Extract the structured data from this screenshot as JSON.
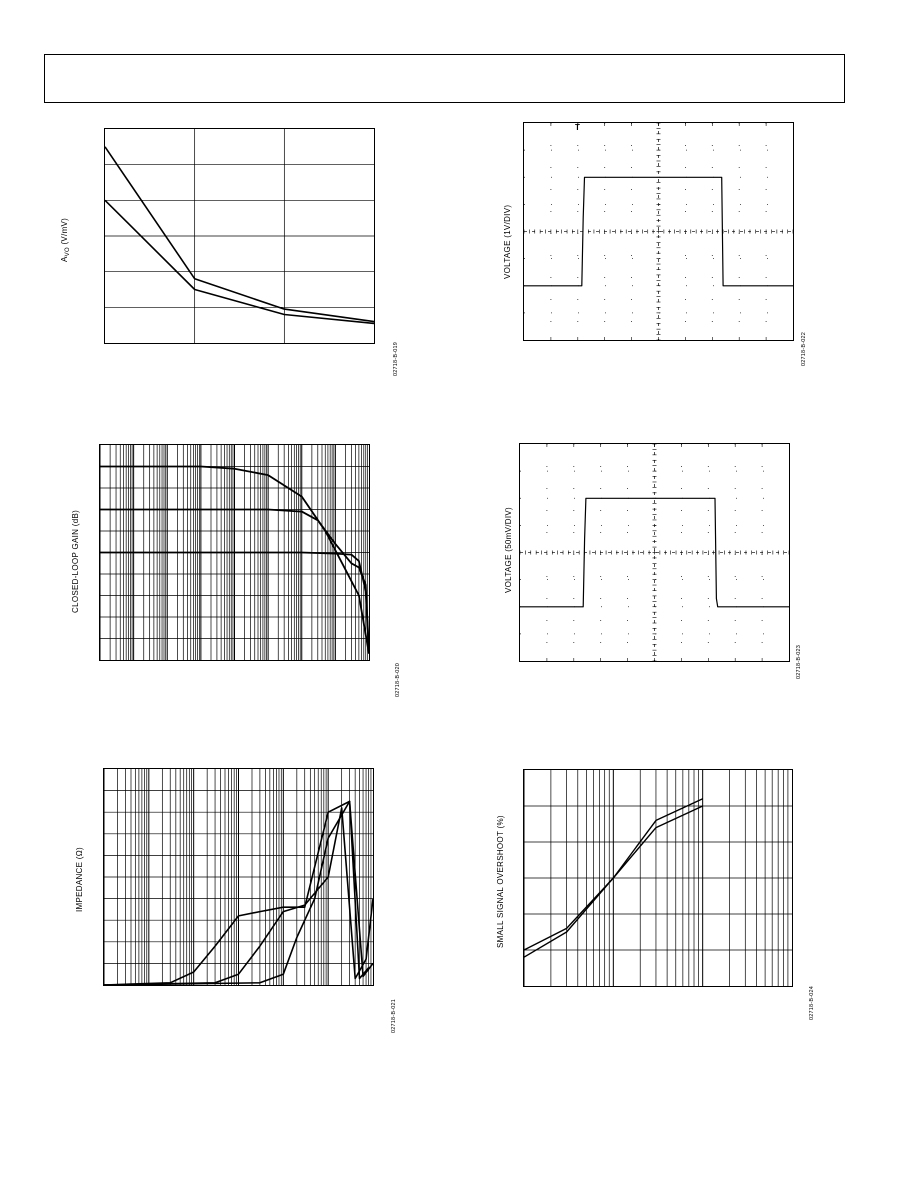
{
  "page": {
    "header_box": ""
  },
  "charts": {
    "avo": {
      "ylabel_main": "A",
      "ylabel_sub": "VO",
      "ylabel_unit": " (V/mV)",
      "fig_id": "02718-B-019"
    },
    "pulse_large": {
      "ylabel": "VOLTAGE (1V/DIV)",
      "fig_id": "02718-B-022",
      "trigger_marker": "T"
    },
    "clgain": {
      "ylabel": "CLOSED-LOOP GAIN (dB)",
      "fig_id": "02718-B-020"
    },
    "pulse_small": {
      "ylabel": "VOLTAGE (50mV/DIV)",
      "fig_id": "02718-B-023"
    },
    "impedance": {
      "ylabel": "IMPEDANCE (Ω)",
      "fig_id": "02718-B-021"
    },
    "overshoot": {
      "ylabel": "SMALL SIGNAL OVERSHOOT (%)",
      "fig_id": "02718-B-024"
    }
  },
  "chart_data": [
    {
      "id": "avo",
      "type": "line",
      "title": "",
      "xlabel": "",
      "ylabel": "AVO (V/mV)",
      "xlim": [
        0,
        3
      ],
      "ylim": [
        0,
        6
      ],
      "grid": true,
      "series": [
        {
          "name": "",
          "x": [
            0,
            1,
            2,
            3
          ],
          "y": [
            5.5,
            1.8,
            0.95,
            0.6
          ]
        },
        {
          "name": "",
          "x": [
            0,
            1,
            2,
            3
          ],
          "y": [
            4.0,
            1.5,
            0.8,
            0.55
          ]
        }
      ]
    },
    {
      "id": "pulse_large",
      "type": "line",
      "title": "",
      "xlabel": "",
      "ylabel": "VOLTAGE (1V/DIV)",
      "xlim": [
        0,
        10
      ],
      "ylim": [
        0,
        8
      ],
      "grid": true,
      "series": [
        {
          "name": "",
          "x": [
            0,
            2.15,
            2.2,
            2.25,
            7.35,
            7.4,
            10
          ],
          "y": [
            2,
            2,
            4.5,
            6,
            6,
            2,
            2
          ]
        }
      ]
    },
    {
      "id": "clgain",
      "type": "line",
      "title": "",
      "xlabel": "",
      "ylabel": "CLOSED-LOOP GAIN (dB)",
      "x_scale": "log",
      "xlim": [
        1,
        100000000
      ],
      "ylim": [
        0,
        10
      ],
      "grid": true,
      "series": [
        {
          "name": "",
          "x": [
            1,
            20,
            100,
            300,
            1000,
            10000,
            100000,
            1000000,
            5000000,
            20000000,
            50000000,
            100000000
          ],
          "y": [
            9,
            9,
            9,
            9,
            9,
            8.9,
            8.6,
            7.6,
            6.0,
            4.2,
            3.0,
            0.3
          ]
        },
        {
          "name": "",
          "x": [
            1,
            100,
            1000,
            10000,
            100000,
            1000000,
            3000000,
            10000000,
            30000000,
            50000000,
            80000000,
            100000000
          ],
          "y": [
            7,
            7,
            7,
            7,
            7,
            6.9,
            6.5,
            5.4,
            4.5,
            4.3,
            3.5,
            0.3
          ]
        },
        {
          "name": "",
          "x": [
            1,
            100,
            1000,
            10000,
            100000,
            1000000,
            10000000,
            30000000,
            50000000,
            80000000,
            100000000
          ],
          "y": [
            5,
            5,
            5,
            5,
            5,
            5,
            4.95,
            4.9,
            4.6,
            3.2,
            0.3
          ]
        }
      ]
    },
    {
      "id": "pulse_small",
      "type": "line",
      "title": "",
      "xlabel": "",
      "ylabel": "VOLTAGE (50mV/DIV)",
      "xlim": [
        0,
        10
      ],
      "ylim": [
        0,
        8
      ],
      "grid": true,
      "series": [
        {
          "name": "",
          "x": [
            0,
            2.35,
            2.4,
            2.45,
            7.25,
            7.3,
            7.35,
            10
          ],
          "y": [
            2,
            2,
            4.5,
            6,
            6,
            2.3,
            2,
            2
          ]
        }
      ]
    },
    {
      "id": "impedance",
      "type": "line",
      "title": "",
      "xlabel": "",
      "ylabel": "IMPEDANCE (Ω)",
      "x_scale": "log",
      "xlim": [
        100,
        100000000
      ],
      "ylim": [
        0,
        10
      ],
      "grid": true,
      "series": [
        {
          "name": "",
          "x": [
            100,
            3000,
            10000,
            30000,
            100000,
            300000,
            1000000,
            3000000,
            10000000,
            30000000,
            50000000,
            80000000
          ],
          "y": [
            0,
            0.1,
            0.6,
            1.8,
            3.2,
            3.4,
            3.6,
            3.6,
            8.0,
            8.5,
            0.3,
            0.8
          ]
        },
        {
          "name": "",
          "x": [
            100,
            30000,
            100000,
            300000,
            1000000,
            3000000,
            10000000,
            20000000,
            40000000,
            70000000,
            100000000
          ],
          "y": [
            0,
            0.1,
            0.5,
            1.8,
            3.4,
            3.7,
            5.0,
            8.2,
            0.3,
            1.2,
            4.0
          ]
        },
        {
          "name": "",
          "x": [
            100,
            300000,
            1000000,
            2000000,
            5000000,
            10000000,
            30000000,
            60000000,
            100000000
          ],
          "y": [
            0,
            0.1,
            0.5,
            2.2,
            4.0,
            6.8,
            8.5,
            0.4,
            1.0
          ]
        }
      ]
    },
    {
      "id": "overshoot",
      "type": "line",
      "title": "",
      "xlabel": "",
      "ylabel": "SMALL SIGNAL OVERSHOOT (%)",
      "x_scale": "log",
      "xlim": [
        10,
        10000
      ],
      "ylim": [
        0,
        60
      ],
      "grid": true,
      "series": [
        {
          "name": "",
          "x": [
            10,
            30,
            100,
            300,
            1000
          ],
          "y": [
            10,
            16,
            30,
            46,
            52
          ]
        },
        {
          "name": "",
          "x": [
            10,
            30,
            100,
            300,
            1000
          ],
          "y": [
            8,
            15,
            30,
            44,
            50
          ]
        }
      ]
    }
  ]
}
